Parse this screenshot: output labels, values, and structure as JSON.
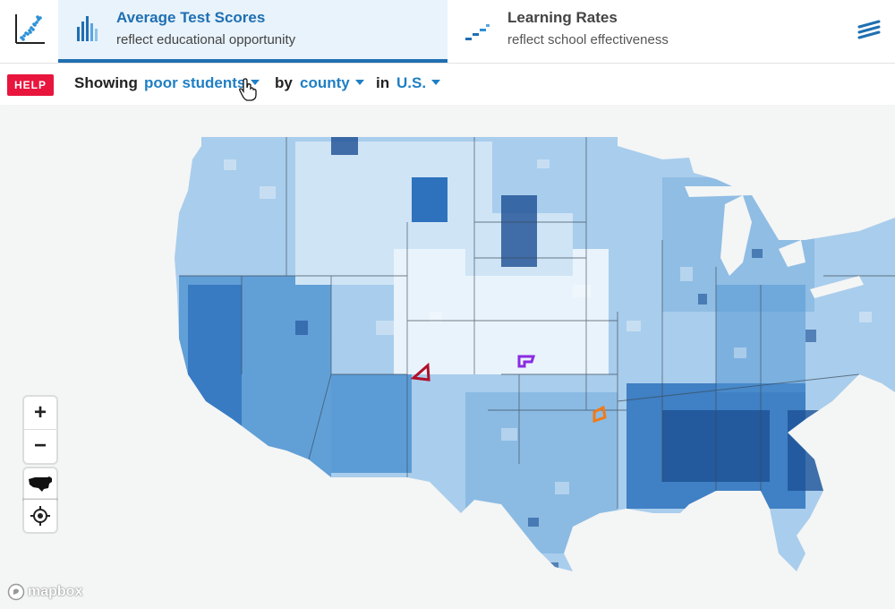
{
  "header": {
    "tabs": [
      {
        "title": "Average Test Scores",
        "subtitle": "reflect educational opportunity",
        "active": true
      },
      {
        "title": "Learning Rates",
        "subtitle": "reflect school effectiveness",
        "active": false
      }
    ]
  },
  "controls": {
    "help_label": "HELP",
    "showing_label": "Showing",
    "subgroup_value": "poor students",
    "by_label": "by",
    "region_value": "county",
    "in_label": "in",
    "area_value": "U.S."
  },
  "map": {
    "zoom_in_label": "+",
    "zoom_out_label": "−",
    "attribution": "mapbox",
    "colors": {
      "water": "#f4f5f5",
      "scale": [
        "#e9f3fb",
        "#cfe4f5",
        "#a9cdec",
        "#7fb3e0",
        "#4f93d2",
        "#2e72bd",
        "#1b4f94"
      ],
      "highlight_red": "#b0102b",
      "highlight_purple": "#8a2be2",
      "highlight_orange": "#f07a18"
    }
  },
  "icons": {
    "app_logo": "scatter-chart-icon",
    "tab1": "bar-chart-icon",
    "tab2": "step-dashes-icon",
    "menu": "layers-menu-icon",
    "us_shape": "us-map-icon",
    "locate": "crosshair-icon",
    "cursor": "hand-pointer-icon"
  }
}
